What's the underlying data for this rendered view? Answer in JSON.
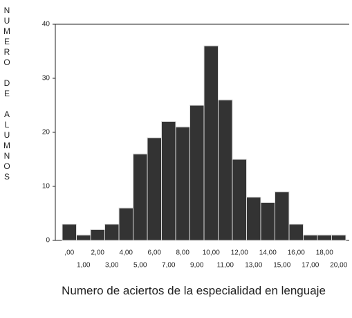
{
  "chart_data": {
    "type": "bar",
    "y_label": "NUMERO DE ALUMNOS",
    "x_label": "Numero de aciertos de la especialidad en lenguaje",
    "categories": [
      ",00",
      "1,00",
      "2,00",
      "3,00",
      "4,00",
      "5,00",
      "6,00",
      "7,00",
      "8,00",
      "9,00",
      "10,00",
      "11,00",
      "12,00",
      "13,00",
      "14,00",
      "15,00",
      "16,00",
      "17,00",
      "18,00",
      "20,00"
    ],
    "values": [
      3,
      1,
      2,
      3,
      6,
      16,
      19,
      22,
      21,
      25,
      36,
      26,
      15,
      8,
      7,
      9,
      3,
      1,
      1,
      1
    ],
    "color": "#333333",
    "ylim": [
      0,
      40
    ],
    "yticks": [
      0,
      10,
      20,
      30,
      40
    ],
    "grid": false
  }
}
